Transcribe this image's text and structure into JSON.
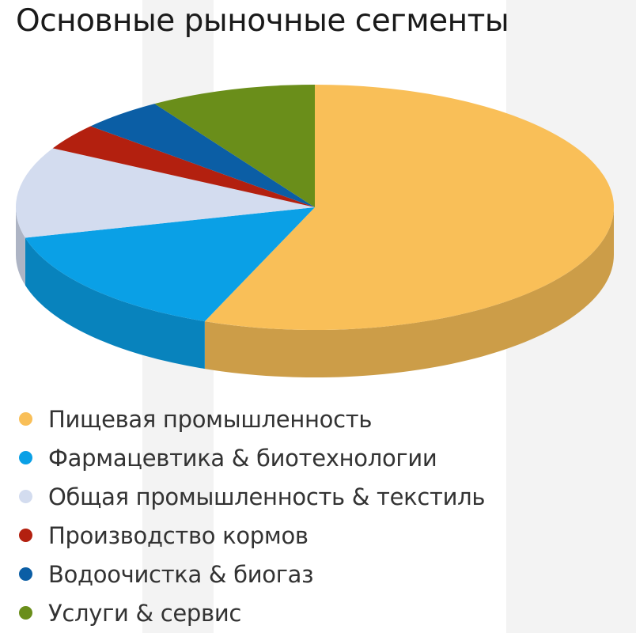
{
  "title": "Основные рыночные сегменты",
  "chart_data": {
    "type": "pie",
    "title": "Основные рыночные сегменты",
    "legend_position": "bottom",
    "style": "3d",
    "slices": [
      {
        "label": "Пищевая промышленность",
        "value": 56,
        "color": "#f9bf58"
      },
      {
        "label": "Фармацевтика & биотехнологии",
        "value": 15,
        "color": "#0aa0e6"
      },
      {
        "label": "Общая промышленность & текстиль",
        "value": 12,
        "color": "#d3dcef"
      },
      {
        "label": "Производство кормов",
        "value": 3.5,
        "color": "#b3200f"
      },
      {
        "label": "Водоочистка & биогаз",
        "value": 4.5,
        "color": "#0b5ea5"
      },
      {
        "label": "Услуги & сервис",
        "value": 9,
        "color": "#6a8e1a"
      }
    ]
  }
}
